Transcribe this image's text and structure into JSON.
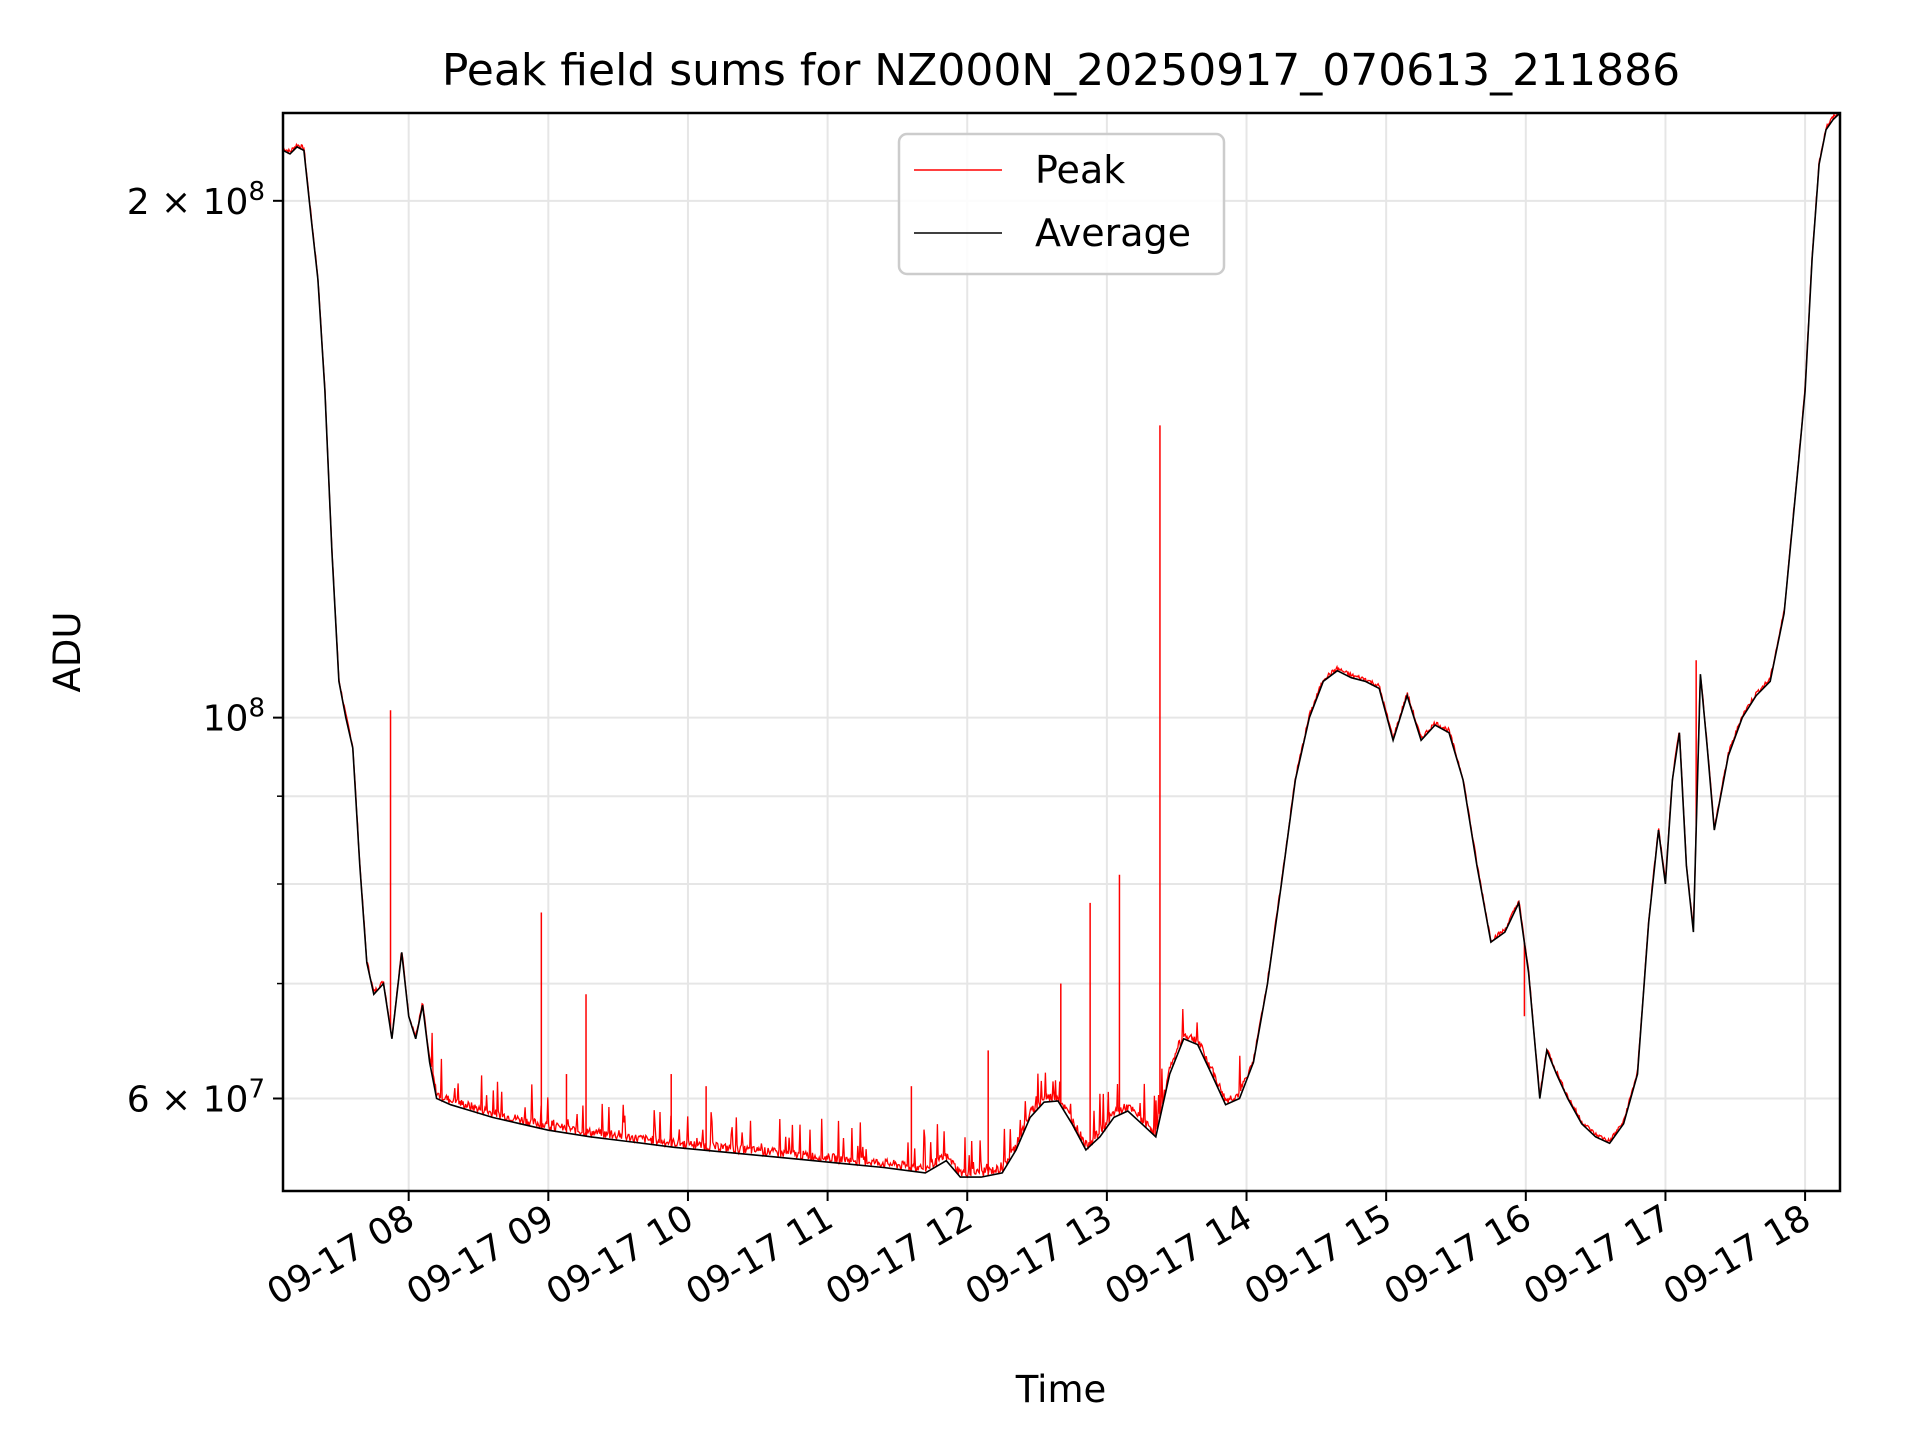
{
  "chart_data": {
    "type": "line",
    "title": "Peak field sums for NZ000N_20250917_070613_211886",
    "xlabel": "Time",
    "ylabel": "ADU",
    "yscale": "log",
    "ylim": [
      53000000,
      225000000
    ],
    "xlim": [
      7.1,
      18.25
    ],
    "grid": true,
    "legend_position": "upper-center",
    "x_ticks": [
      {
        "value": 8,
        "label": "09-17 08"
      },
      {
        "value": 9,
        "label": "09-17 09"
      },
      {
        "value": 10,
        "label": "09-17 10"
      },
      {
        "value": 11,
        "label": "09-17 11"
      },
      {
        "value": 12,
        "label": "09-17 12"
      },
      {
        "value": 13,
        "label": "09-17 13"
      },
      {
        "value": 14,
        "label": "09-17 14"
      },
      {
        "value": 15,
        "label": "09-17 15"
      },
      {
        "value": 16,
        "label": "09-17 16"
      },
      {
        "value": 17,
        "label": "09-17 17"
      },
      {
        "value": 18,
        "label": "09-17 18"
      }
    ],
    "y_ticks_major": [
      {
        "value": 60000000,
        "label_base": "6 × 10",
        "label_exp": "7"
      },
      {
        "value": 100000000,
        "label_base": "10",
        "label_exp": "8"
      },
      {
        "value": 200000000,
        "label_base": "2 × 10",
        "label_exp": "8"
      }
    ],
    "y_ticks_minor": [
      70000000,
      80000000,
      90000000
    ],
    "series": [
      {
        "name": "Peak",
        "color": "#ff0000",
        "spikes": [
          {
            "x": 7.87,
            "y": 101000000
          },
          {
            "x": 8.95,
            "y": 77000000
          },
          {
            "x": 9.13,
            "y": 62000000
          },
          {
            "x": 9.27,
            "y": 69000000
          },
          {
            "x": 9.88,
            "y": 62000000
          },
          {
            "x": 10.13,
            "y": 61000000
          },
          {
            "x": 11.6,
            "y": 61000000
          },
          {
            "x": 12.15,
            "y": 64000000
          },
          {
            "x": 12.67,
            "y": 70000000
          },
          {
            "x": 12.88,
            "y": 78000000
          },
          {
            "x": 13.09,
            "y": 81000000
          },
          {
            "x": 13.38,
            "y": 148000000
          },
          {
            "x": 15.99,
            "y": 67000000
          },
          {
            "x": 17.22,
            "y": 108000000
          }
        ]
      },
      {
        "name": "Average",
        "color": "#000000",
        "points": [
          [
            7.1,
            214000000
          ],
          [
            7.15,
            213000000
          ],
          [
            7.2,
            215000000
          ],
          [
            7.25,
            214000000
          ],
          [
            7.3,
            196000000
          ],
          [
            7.35,
            180000000
          ],
          [
            7.4,
            155000000
          ],
          [
            7.45,
            125000000
          ],
          [
            7.5,
            105000000
          ],
          [
            7.55,
            100000000
          ],
          [
            7.6,
            96000000
          ],
          [
            7.65,
            82000000
          ],
          [
            7.7,
            72000000
          ],
          [
            7.75,
            69000000
          ],
          [
            7.82,
            70000000
          ],
          [
            7.88,
            65000000
          ],
          [
            7.95,
            73000000
          ],
          [
            8.0,
            67000000
          ],
          [
            8.05,
            65000000
          ],
          [
            8.1,
            68000000
          ],
          [
            8.15,
            63000000
          ],
          [
            8.2,
            60000000
          ],
          [
            8.3,
            59500000
          ],
          [
            8.45,
            59000000
          ],
          [
            8.6,
            58500000
          ],
          [
            8.8,
            58000000
          ],
          [
            9.0,
            57500000
          ],
          [
            9.3,
            57000000
          ],
          [
            9.6,
            56600000
          ],
          [
            9.9,
            56200000
          ],
          [
            10.2,
            55900000
          ],
          [
            10.5,
            55600000
          ],
          [
            10.8,
            55300000
          ],
          [
            11.1,
            55000000
          ],
          [
            11.4,
            54700000
          ],
          [
            11.7,
            54300000
          ],
          [
            11.85,
            55200000
          ],
          [
            11.95,
            54000000
          ],
          [
            12.1,
            54000000
          ],
          [
            12.25,
            54300000
          ],
          [
            12.35,
            56000000
          ],
          [
            12.45,
            58500000
          ],
          [
            12.55,
            59700000
          ],
          [
            12.65,
            59800000
          ],
          [
            12.75,
            58000000
          ],
          [
            12.85,
            56000000
          ],
          [
            12.95,
            57000000
          ],
          [
            13.05,
            58500000
          ],
          [
            13.15,
            59000000
          ],
          [
            13.25,
            58000000
          ],
          [
            13.35,
            57000000
          ],
          [
            13.45,
            62000000
          ],
          [
            13.55,
            65000000
          ],
          [
            13.65,
            64500000
          ],
          [
            13.75,
            62000000
          ],
          [
            13.85,
            59500000
          ],
          [
            13.95,
            60000000
          ],
          [
            14.05,
            63000000
          ],
          [
            14.15,
            70000000
          ],
          [
            14.25,
            80000000
          ],
          [
            14.35,
            92000000
          ],
          [
            14.45,
            100000000
          ],
          [
            14.55,
            105000000
          ],
          [
            14.65,
            106500000
          ],
          [
            14.75,
            105500000
          ],
          [
            14.85,
            105000000
          ],
          [
            14.95,
            104000000
          ],
          [
            15.05,
            97000000
          ],
          [
            15.15,
            103000000
          ],
          [
            15.25,
            97000000
          ],
          [
            15.35,
            99000000
          ],
          [
            15.45,
            98000000
          ],
          [
            15.55,
            92000000
          ],
          [
            15.65,
            82000000
          ],
          [
            15.75,
            74000000
          ],
          [
            15.85,
            75000000
          ],
          [
            15.95,
            78000000
          ],
          [
            16.02,
            71000000
          ],
          [
            16.1,
            60000000
          ],
          [
            16.15,
            64000000
          ],
          [
            16.22,
            62000000
          ],
          [
            16.3,
            60000000
          ],
          [
            16.4,
            58000000
          ],
          [
            16.5,
            57000000
          ],
          [
            16.6,
            56500000
          ],
          [
            16.7,
            58000000
          ],
          [
            16.8,
            62000000
          ],
          [
            16.88,
            76000000
          ],
          [
            16.95,
            86000000
          ],
          [
            17.0,
            80000000
          ],
          [
            17.05,
            92000000
          ],
          [
            17.1,
            98000000
          ],
          [
            17.15,
            82000000
          ],
          [
            17.2,
            75000000
          ],
          [
            17.25,
            106000000
          ],
          [
            17.3,
            96000000
          ],
          [
            17.35,
            86000000
          ],
          [
            17.45,
            95000000
          ],
          [
            17.55,
            100000000
          ],
          [
            17.65,
            103000000
          ],
          [
            17.75,
            105000000
          ],
          [
            17.85,
            115000000
          ],
          [
            17.95,
            140000000
          ],
          [
            18.0,
            155000000
          ],
          [
            18.05,
            185000000
          ],
          [
            18.1,
            210000000
          ],
          [
            18.15,
            220000000
          ],
          [
            18.2,
            223000000
          ],
          [
            18.25,
            225000000
          ]
        ]
      }
    ]
  }
}
